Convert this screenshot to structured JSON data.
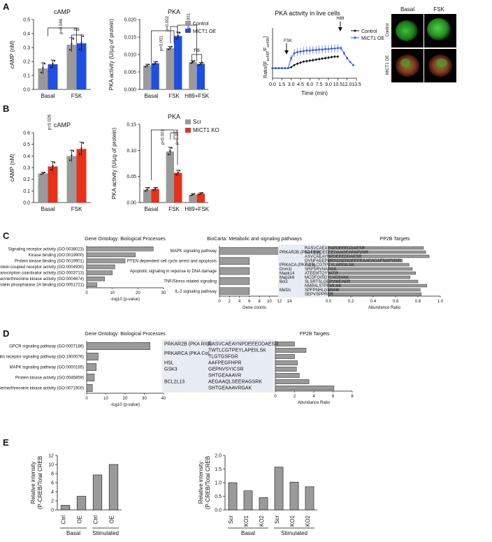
{
  "figure": {
    "panel_letters": [
      "A",
      "B",
      "C",
      "D",
      "E"
    ]
  },
  "colors": {
    "control": "#9a9a9a",
    "oe": "#1f4fe0",
    "scr": "#9a9a9a",
    "ko": "#e8311a",
    "bar_gray": "#9a9a9a",
    "line_blue": "#2c5cf0",
    "line_black": "#111111"
  },
  "chart_data": [
    {
      "id": "A-camp",
      "type": "bar",
      "title": "cAMP",
      "ylabel": "cAMP (nM)",
      "categories": [
        "Basal",
        "FSK"
      ],
      "ylim": [
        0,
        0.5
      ],
      "yticks": [
        0.0,
        0.1,
        0.2,
        0.3,
        0.4,
        0.5
      ],
      "series": [
        {
          "values": [
            0.15,
            0.32
          ],
          "errors": [
            0.04,
            0.05
          ]
        },
        {
          "values": [
            0.18,
            0.33
          ],
          "errors": [
            0.03,
            0.06
          ]
        }
      ],
      "annotations": [
        "p=0.046",
        "ns"
      ]
    },
    {
      "id": "A-pka",
      "type": "bar",
      "title": "PKA",
      "ylabel": "PKA activity (U/µg of protein)",
      "categories": [
        "Basal",
        "FSK",
        "H89+FSK"
      ],
      "ylim": [
        0,
        0.02
      ],
      "yticks": [
        0.0,
        0.005,
        0.01,
        0.015,
        0.02
      ],
      "series": [
        {
          "name": "Control",
          "values": [
            0.0068,
            0.0118,
            0.0078
          ],
          "errors": [
            0.0004,
            0.0005,
            0.0004
          ]
        },
        {
          "name": "MICT1 OE",
          "values": [
            0.0075,
            0.0153,
            0.0073
          ],
          "errors": [
            0.0005,
            0.0011,
            0.0004
          ]
        }
      ],
      "annotations": [
        "p<0.001",
        "p=0.002",
        "p<0.001",
        "ns"
      ]
    },
    {
      "id": "A-live",
      "type": "line",
      "title": "PKA activity in live cells",
      "xlabel": "Time (min)",
      "ylabel_main": "Ratio/[F",
      "ylabel_sub1": "ex488",
      "ylabel_mid": "/F",
      "ylabel_sub2": "ex405",
      "ylabel_end": "]",
      "xticks": [
        "0.0",
        "1.5",
        "3.0",
        "4.5",
        "6.0",
        "7.5",
        "9.0",
        "10.5",
        "12.0",
        "13.5"
      ],
      "xlim": [
        0,
        13.5
      ],
      "ylim": [
        0,
        1
      ],
      "arrows": [
        "FSK",
        "H89"
      ],
      "x": [
        0.0,
        0.5,
        1.0,
        1.5,
        2.0,
        2.5,
        3.0,
        3.5,
        4.0,
        4.5,
        5.0,
        5.5,
        6.0,
        6.5,
        7.0,
        7.5,
        8.0,
        8.5,
        9.0,
        9.5,
        10.0,
        10.5,
        11.0,
        11.5,
        12.0,
        12.5,
        13.0
      ],
      "series": [
        {
          "name": "Control",
          "values": [
            0.2,
            0.2,
            0.2,
            0.2,
            0.2,
            0.2,
            0.22,
            0.26,
            0.29,
            0.31,
            0.33,
            0.34,
            0.35,
            0.36,
            0.37,
            0.38,
            0.39,
            0.4,
            0.41,
            0.42,
            0.43,
            0.43,
            null,
            null,
            null,
            null,
            null
          ],
          "errors": [
            0.01,
            0.01,
            0.01,
            0.01,
            0.01,
            0.01,
            0.02,
            0.03,
            0.03,
            0.03,
            0.03,
            0.03,
            0.03,
            0.03,
            0.03,
            0.03,
            0.03,
            0.03,
            0.03,
            0.03,
            0.03,
            0.03,
            null,
            null,
            null,
            null,
            null
          ]
        },
        {
          "name": "MICT1 OE",
          "values": [
            0.2,
            0.2,
            0.2,
            0.2,
            0.2,
            0.2,
            0.4,
            0.5,
            0.52,
            0.53,
            0.54,
            0.55,
            0.55,
            0.56,
            0.56,
            0.57,
            0.57,
            0.58,
            0.58,
            0.59,
            0.59,
            0.6,
            0.6,
            0.5,
            0.4,
            0.32,
            0.26
          ],
          "errors": [
            0.01,
            0.01,
            0.01,
            0.01,
            0.01,
            0.01,
            0.06,
            0.08,
            0.08,
            0.08,
            0.08,
            0.08,
            0.08,
            0.08,
            0.08,
            0.08,
            0.08,
            0.08,
            0.08,
            0.08,
            0.08,
            0.08,
            0.05,
            0.04,
            0.03,
            0.02,
            0.02
          ]
        }
      ]
    },
    {
      "id": "B-camp",
      "type": "bar",
      "title": "cAMP",
      "ylabel": "cAMP (nM)",
      "categories": [
        "Basal",
        "FSK"
      ],
      "ylim": [
        0,
        0.6
      ],
      "yticks": [
        0.0,
        0.1,
        0.2,
        0.3,
        0.4,
        0.5,
        0.6
      ],
      "series": [
        {
          "values": [
            0.25,
            0.4
          ],
          "errors": [
            0.01,
            0.05
          ]
        },
        {
          "values": [
            0.31,
            0.46
          ],
          "errors": [
            0.04,
            0.06
          ]
        }
      ],
      "annotations": [
        "p=0.026"
      ]
    },
    {
      "id": "B-pka",
      "type": "bar",
      "title": "PKA",
      "ylabel": "PKA activity (U/µg of protein)",
      "categories": [
        "Basal",
        "FSK",
        "H89+FSK"
      ],
      "ylim": [
        0,
        0.15
      ],
      "yticks": [
        0.0,
        0.05,
        0.1,
        0.15
      ],
      "series": [
        {
          "name": "Scr",
          "values": [
            0.025,
            0.098,
            0.015
          ],
          "errors": [
            0.004,
            0.008,
            0.002
          ]
        },
        {
          "name": "MICT1 KO",
          "values": [
            0.026,
            0.057,
            0.017
          ],
          "errors": [
            0.003,
            0.005,
            0.002
          ]
        }
      ],
      "annotations": [
        "p<0.001",
        "p=0.004"
      ]
    },
    {
      "id": "C-go",
      "type": "bar",
      "orientation": "horizontal",
      "title": "Gene Ontology: Biological Processes",
      "xlabel": "-log10 (p-value)",
      "xlim": [
        0,
        30
      ],
      "xticks": [
        0,
        10,
        20,
        30
      ],
      "categories": [
        "Signaling receptor activity (GO:0038023)",
        "Kinase binding (GO:0019900)",
        "Protein kinase binding (GO:0019901)",
        "G protein-coupled receptor activity (GO:0004930)",
        "Transcription coactivator activity (GO:0003713)",
        "Protein serine/threonine kinase activity (GO:0004674)",
        "Protein phosphatase 2A binding (GO:0051721)"
      ],
      "values": [
        26,
        19,
        15,
        11,
        10,
        7,
        4
      ]
    },
    {
      "id": "C-biocarta",
      "type": "bar",
      "orientation": "horizontal",
      "title": "BioCarta: Metabolic and signaling pathways",
      "xlabel": "Gene counts",
      "xlim": [
        0,
        14
      ],
      "xticks": [
        0,
        2,
        4,
        6,
        8,
        10,
        12,
        14
      ],
      "categories": [
        "MAPK signaling pathway",
        "PTEN dependent cell cycle arrest and apoptosis",
        "Apoptotic signaling in reponse to DNA damage",
        "TNF/Stress related signaling",
        "IL-2 signaling pathway"
      ],
      "values": [
        14,
        6,
        6,
        6,
        6
      ]
    },
    {
      "id": "C-pp2b",
      "type": "bar",
      "orientation": "horizontal",
      "title": "PP2B Targets",
      "xlabel": "Abundance Ratio",
      "xlim": [
        0,
        1
      ],
      "xticks": [
        "0.0",
        "0.2",
        "0.4",
        "0.6",
        "0.8",
        "1.0"
      ],
      "genes": [
        "PRKAR2B (PKA RIIβ)",
        "PRKACA (PKA Cα)",
        "Dnm1l",
        "Mapk14",
        "Map2k6",
        "Bcl2",
        "Mef2c"
      ],
      "categories": [
        "RASVCAEAYNPDEEEDDAESR",
        "SDEEMDEEEEDAAGEAPAPVNR",
        "ASVCAEAYNPDEEEDDAESR",
        "GVNFAEEPMRSDSENGEEEEAAEAGAFNAPVINR",
        "TWTLCGTPEYLAPEIILSK",
        "SRPSRVNAPGK",
        "ATEEMTQYVATR",
        "MCDFGISGYLVDSVAK",
        "SLSRTSLGEPVWEAER",
        "NMPALSTPEMLNK",
        "SPFPNHLGMNNK",
        "SEPVSPPRDR"
      ],
      "values": [
        0.85,
        0.87,
        0.9,
        0.66,
        0.72,
        0.75,
        0.78,
        0.73,
        0.8,
        0.88,
        0.82,
        0.83
      ]
    },
    {
      "id": "D-go",
      "type": "bar",
      "orientation": "horizontal",
      "title": "Gene Ontology: Biological Processes",
      "xlabel": "-log10 (p-value)",
      "xlim": [
        0,
        40
      ],
      "xticks": [
        0,
        10,
        20,
        30,
        40
      ],
      "categories": [
        "GPCR signaling pathway (GO:0007186)",
        "Insulin receptor signaling pathway (GO:1900076)",
        "MAPK signaling pathway (GO:0000165)",
        "Protein kinase activity (GO:0045859)",
        "Serine/threonine kinase activity (GO:0071900)"
      ],
      "values": [
        33,
        6,
        5,
        4,
        3
      ]
    },
    {
      "id": "D-pp2b",
      "type": "bar",
      "orientation": "horizontal",
      "title": "PP2B Targets",
      "xlabel": "Abundance Ratio",
      "xlim": [
        0,
        8
      ],
      "xticks": [
        0,
        2,
        4,
        6,
        8
      ],
      "genes": [
        "PRKAR2B (PKA RIIβ)",
        "PRKARCA (PKA Cα)",
        "HSL",
        "GSK3",
        "BCL2L13"
      ],
      "categories": [
        "RASVCAEAYNPDEEEDDAESR",
        "TWTLCGTPEYLAPEIILSK",
        "TLGTGSFGR",
        "AAFPEGFHPR",
        "GEPNVSYICSR",
        "SHTGEAAAVR",
        "AEGAAQLSEERAGSRK",
        "SHTGEAAAVRGAK"
      ],
      "values": [
        2.0,
        3.2,
        2.0,
        2.3,
        2.2,
        2.5,
        3.5,
        6.1
      ]
    },
    {
      "id": "E-left",
      "type": "bar",
      "ylabel_line1": "Relative intensity",
      "ylabel_line2": "(P-CREB/Total CREB",
      "categories": [
        "Ctrl",
        "OE",
        "Ctrl",
        "OE"
      ],
      "groups": [
        "Basal",
        "Stimulated"
      ],
      "ylim": [
        0,
        12
      ],
      "yticks": [
        0,
        2,
        4,
        6,
        8,
        10,
        12
      ],
      "values": [
        1.0,
        3.0,
        7.7,
        10.0
      ]
    },
    {
      "id": "E-right",
      "type": "bar",
      "ylabel_line1": "Relative intensity",
      "ylabel_line2": "(P-CREB/Total CREB",
      "categories": [
        "Scr",
        "KO1",
        "KO2",
        "Scr",
        "KO1",
        "KO2"
      ],
      "groups": [
        "Basal",
        "Stimulated"
      ],
      "ylim": [
        0,
        2.0
      ],
      "yticks": [
        "0.0",
        "0.5",
        "1.0",
        "1.5",
        "2.0"
      ],
      "values": [
        1.0,
        0.7,
        0.45,
        1.57,
        1.02,
        0.85
      ]
    }
  ],
  "legends": {
    "A_pka": [
      "Control",
      "MICT1 OE"
    ],
    "A_live": [
      "Control",
      "MICT1 OE"
    ],
    "B_pka": [
      "Scr",
      "MICT1 KO"
    ]
  },
  "micrographs": {
    "col_labels": [
      "Basal",
      "FSK"
    ],
    "row_labels": [
      "Control",
      "MICT1 OE"
    ]
  }
}
